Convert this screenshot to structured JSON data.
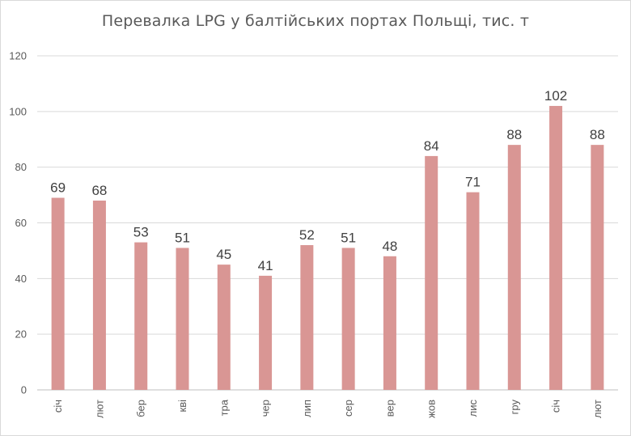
{
  "chart_data": {
    "type": "bar",
    "title": "Перевалка LPG у балтійських портах Польщі, тис. т",
    "xlabel": "",
    "ylabel": "",
    "ylim": [
      0,
      120
    ],
    "yticks": [
      0,
      20,
      40,
      60,
      80,
      100,
      120
    ],
    "grid": true,
    "legend": "none",
    "bar_color": "#d99694",
    "categories": [
      "січ",
      "лют",
      "бер",
      "кві",
      "тра",
      "чер",
      "лип",
      "сер",
      "вер",
      "жов",
      "лис",
      "гру",
      "січ",
      "лют"
    ],
    "values": [
      69,
      68,
      53,
      51,
      45,
      41,
      52,
      51,
      48,
      84,
      71,
      88,
      102,
      88
    ]
  }
}
